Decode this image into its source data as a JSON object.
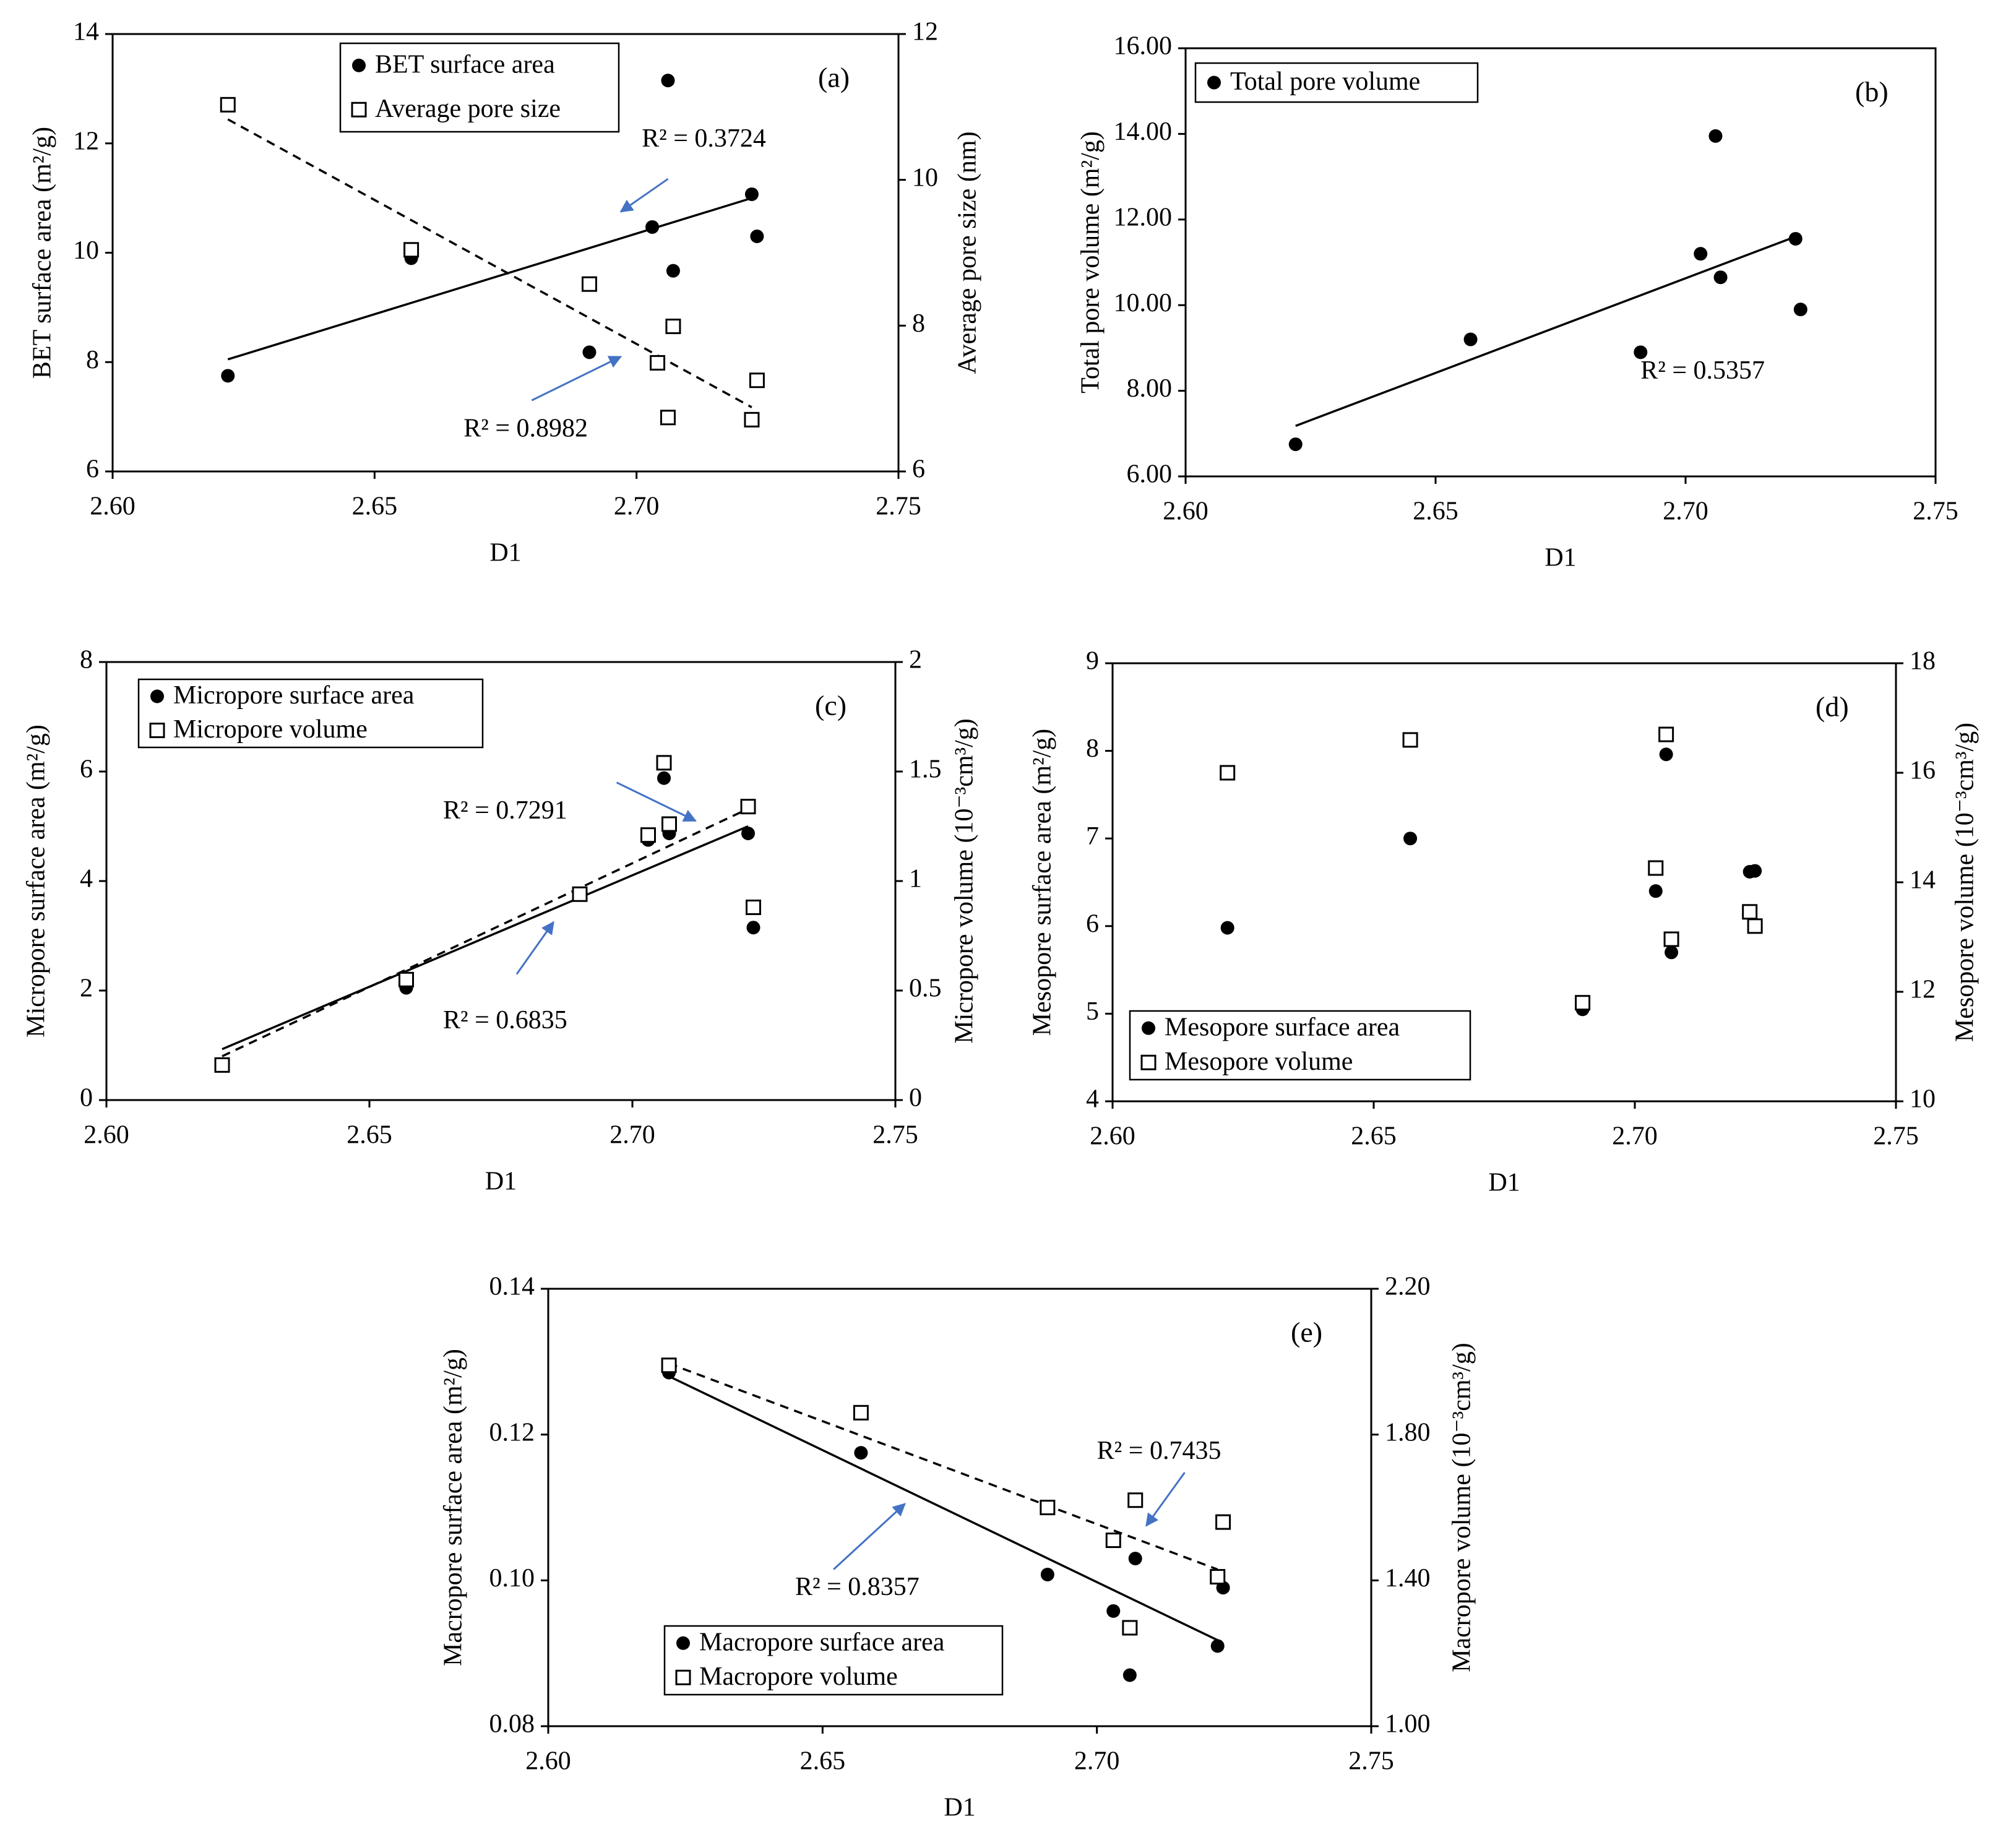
{
  "colors": {
    "axis": "#000000",
    "marker": "#000000",
    "annotation_arrow": "#4472c4"
  },
  "chart_data": [
    {
      "id": "a",
      "type": "scatter",
      "panel_label": "(a)",
      "xlabel": "D1",
      "ylabel": "BET  surface area (m²/g)",
      "y2label": "Average pore size (nm)",
      "xlim": [
        2.6,
        2.75
      ],
      "xticks": [
        2.6,
        2.65,
        2.7,
        2.75
      ],
      "xfmt": 2,
      "ylim": [
        6,
        14
      ],
      "yticks": [
        6,
        8,
        10,
        12,
        14
      ],
      "yfmt": 0,
      "y2lim": [
        6,
        12
      ],
      "y2ticks": [
        6,
        8,
        10,
        12
      ],
      "y2fmt": 0,
      "legend": {
        "position": "top-left"
      },
      "series": [
        {
          "name": "BET surface area",
          "marker": "filled-circle",
          "axis": "left",
          "x": [
            2.622,
            2.657,
            2.691,
            2.703,
            2.706,
            2.707,
            2.722,
            2.723
          ],
          "y": [
            7.75,
            9.9,
            8.18,
            10.47,
            13.15,
            9.67,
            11.07,
            10.3
          ],
          "trendline": {
            "style": "solid",
            "x": [
              2.622,
              2.722
            ],
            "y": [
              8.05,
              11.0
            ]
          }
        },
        {
          "name": "Average pore size",
          "marker": "open-square",
          "axis": "right",
          "x": [
            2.622,
            2.657,
            2.691,
            2.704,
            2.706,
            2.707,
            2.722,
            2.723
          ],
          "y": [
            11.03,
            9.04,
            8.57,
            7.49,
            6.74,
            7.99,
            6.71,
            7.25
          ],
          "trendline": {
            "style": "dashed",
            "x": [
              2.622,
              2.722
            ],
            "y": [
              10.83,
              6.88
            ]
          }
        }
      ],
      "annotations": [
        {
          "text": "R² = 0.3724",
          "x": 2.701,
          "y": 12.05,
          "arrow_from": [
            2.706,
            11.35
          ],
          "arrow_to": [
            2.697,
            10.75
          ]
        },
        {
          "text": "R² = 0.8982",
          "x": 2.667,
          "y": 6.75,
          "arrow_from": [
            2.68,
            7.3
          ],
          "arrow_to": [
            2.697,
            8.1
          ]
        }
      ]
    },
    {
      "id": "b",
      "type": "scatter",
      "panel_label": "(b)",
      "xlabel": "D1",
      "ylabel": "Total pore volume (m²/g)",
      "xlim": [
        2.6,
        2.75
      ],
      "xticks": [
        2.6,
        2.65,
        2.7,
        2.75
      ],
      "xfmt": 2,
      "ylim": [
        6,
        16
      ],
      "yticks": [
        6,
        8,
        10,
        12,
        14,
        16
      ],
      "yfmt": 2,
      "legend": {
        "position": "top-left"
      },
      "series": [
        {
          "name": "Total pore volume",
          "marker": "filled-circle",
          "axis": "left",
          "x": [
            2.622,
            2.657,
            2.691,
            2.703,
            2.706,
            2.707,
            2.722,
            2.723
          ],
          "y": [
            6.75,
            9.2,
            8.9,
            11.2,
            13.95,
            10.65,
            11.55,
            9.9
          ],
          "trendline": {
            "style": "solid",
            "x": [
              2.622,
              2.722
            ],
            "y": [
              7.18,
              11.6
            ]
          }
        }
      ],
      "annotations": [
        {
          "text": "R² = 0.5357",
          "x": 2.691,
          "y": 8.42
        }
      ]
    },
    {
      "id": "c",
      "type": "scatter",
      "panel_label": "(c)",
      "xlabel": "D1",
      "ylabel": "Micropore surface area (m²/g)",
      "y2label": "Micropore volume (10⁻³cm³/g)",
      "xlim": [
        2.6,
        2.75
      ],
      "xticks": [
        2.6,
        2.65,
        2.7,
        2.75
      ],
      "xfmt": 2,
      "ylim": [
        0,
        8
      ],
      "yticks": [
        0,
        2,
        4,
        6,
        8
      ],
      "yfmt": 0,
      "y2lim": [
        0,
        2
      ],
      "y2ticks": [
        0,
        0.5,
        1,
        1.5,
        2
      ],
      "y2fmt": -1,
      "legend": {
        "position": "top-left"
      },
      "series": [
        {
          "name": "Micropore surface area",
          "marker": "filled-circle",
          "axis": "left",
          "x": [
            2.622,
            2.657,
            2.69,
            2.703,
            2.706,
            2.707,
            2.722,
            2.723
          ],
          "y": [
            0.63,
            2.05,
            3.75,
            4.75,
            5.88,
            4.87,
            4.87,
            3.15
          ],
          "trendline": {
            "style": "solid",
            "x": [
              2.622,
              2.722
            ],
            "y": [
              0.93,
              5.0
            ]
          }
        },
        {
          "name": "Micropore volume",
          "marker": "open-square",
          "axis": "right",
          "x": [
            2.622,
            2.657,
            2.69,
            2.703,
            2.706,
            2.707,
            2.722,
            2.723
          ],
          "y": [
            0.16,
            0.55,
            0.94,
            1.21,
            1.54,
            1.26,
            1.34,
            0.88
          ],
          "trendline": {
            "style": "dashed",
            "x": [
              2.622,
              2.722
            ],
            "y": [
              0.2,
              1.33
            ]
          }
        }
      ],
      "annotations": [
        {
          "text": "R² = 0.7291",
          "x": 2.664,
          "y": 5.25,
          "arrow_from": [
            2.697,
            5.8
          ],
          "arrow_to": [
            2.712,
            5.1
          ]
        },
        {
          "text": "R² = 0.6835",
          "x": 2.664,
          "y": 1.42,
          "arrow_from": [
            2.678,
            2.3
          ],
          "arrow_to": [
            2.685,
            3.25
          ]
        }
      ]
    },
    {
      "id": "d",
      "type": "scatter",
      "panel_label": "(d)",
      "xlabel": "D1",
      "ylabel": "Mesopore surface area (m²/g)",
      "y2label": "Mesopore volume (10⁻³cm³/g)",
      "xlim": [
        2.6,
        2.75
      ],
      "xticks": [
        2.6,
        2.65,
        2.7,
        2.75
      ],
      "xfmt": 2,
      "ylim": [
        4,
        9
      ],
      "yticks": [
        4,
        5,
        6,
        7,
        8,
        9
      ],
      "yfmt": 0,
      "y2lim": [
        10,
        18
      ],
      "y2ticks": [
        10,
        12,
        14,
        16,
        18
      ],
      "y2fmt": 0,
      "legend": {
        "position": "bottom-left"
      },
      "series": [
        {
          "name": "Mesopore surface area",
          "marker": "filled-circle",
          "axis": "left",
          "x": [
            2.622,
            2.657,
            2.69,
            2.704,
            2.706,
            2.707,
            2.722,
            2.723
          ],
          "y": [
            5.98,
            7.0,
            5.05,
            6.4,
            7.96,
            5.7,
            6.62,
            6.63
          ]
        },
        {
          "name": "Mesopore volume",
          "marker": "open-square",
          "axis": "right",
          "x": [
            2.622,
            2.657,
            2.69,
            2.704,
            2.706,
            2.707,
            2.722,
            2.723
          ],
          "y": [
            16.0,
            16.6,
            11.8,
            14.26,
            16.7,
            12.96,
            13.46,
            13.2
          ]
        }
      ],
      "annotations": []
    },
    {
      "id": "e",
      "type": "scatter",
      "panel_label": "(e)",
      "xlabel": "D1",
      "ylabel": "Macropore surface area (m²/g)",
      "y2label": "Macropore volume (10⁻³cm³/g)",
      "xlim": [
        2.6,
        2.75
      ],
      "xticks": [
        2.6,
        2.65,
        2.7,
        2.75
      ],
      "xfmt": 2,
      "ylim": [
        0.08,
        0.14
      ],
      "yticks": [
        0.08,
        0.1,
        0.12,
        0.14
      ],
      "yfmt": 2,
      "y2lim": [
        1.0,
        2.2
      ],
      "y2ticks": [
        1.0,
        1.4,
        1.8,
        2.2
      ],
      "y2fmt": 2,
      "legend": {
        "position": "bottom-left"
      },
      "series": [
        {
          "name": "Macropore surface area",
          "marker": "filled-circle",
          "axis": "left",
          "x": [
            2.622,
            2.657,
            2.691,
            2.703,
            2.706,
            2.707,
            2.722,
            2.723
          ],
          "y": [
            0.1285,
            0.1175,
            0.1008,
            0.0958,
            0.087,
            0.103,
            0.091,
            0.099
          ],
          "trendline": {
            "style": "solid",
            "x": [
              2.622,
              2.722
            ],
            "y": [
              0.128,
              0.0918
            ]
          }
        },
        {
          "name": "Macropore volume",
          "marker": "open-square",
          "axis": "right",
          "x": [
            2.622,
            2.657,
            2.691,
            2.703,
            2.706,
            2.707,
            2.722,
            2.723
          ],
          "y": [
            1.99,
            1.86,
            1.6,
            1.51,
            1.27,
            1.62,
            1.41,
            1.56
          ],
          "trendline": {
            "style": "dashed",
            "x": [
              2.622,
              2.722
            ],
            "y": [
              1.995,
              1.43
            ]
          }
        }
      ],
      "annotations": [
        {
          "text": "R² = 0.7435",
          "x": 2.7,
          "y": 0.1175,
          "arrow_from": [
            2.716,
            0.1148
          ],
          "arrow_to": [
            2.709,
            0.1075
          ]
        },
        {
          "text": "R² = 0.8357",
          "x": 2.645,
          "y": 0.0988,
          "arrow_from": [
            2.652,
            0.1015
          ],
          "arrow_to": [
            2.665,
            0.1105
          ]
        }
      ]
    }
  ]
}
